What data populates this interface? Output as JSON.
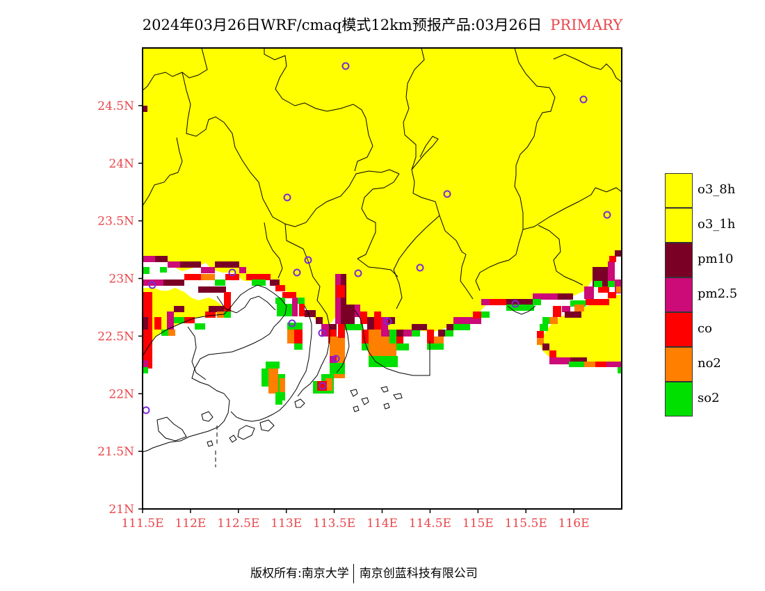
{
  "title": {
    "text": "2024年03月26日WRF/cmaq模式12km预报产品:03月26日",
    "tag": "PRIMARY"
  },
  "map": {
    "lon_range": [
      111.5,
      116.5
    ],
    "lat_range": [
      21,
      25
    ],
    "lat_ticks": [
      "24.5N",
      "24N",
      "23.5N",
      "23N",
      "22.5N",
      "22N",
      "21.5N",
      "21N"
    ],
    "lon_ticks": [
      "111.5E",
      "112E",
      "112.5E",
      "113E",
      "113.5E",
      "114E",
      "114.5E",
      "115E",
      "115.5E",
      "116E"
    ],
    "station_color": "#7a2bd6"
  },
  "legend": [
    {
      "label": "o3_8h",
      "color": "#ffff00"
    },
    {
      "label": "o3_1h",
      "color": "#ffff00"
    },
    {
      "label": "pm10",
      "color": "#7a0026"
    },
    {
      "label": "pm2.5",
      "color": "#cc0a78"
    },
    {
      "label": "co",
      "color": "#ff0000"
    },
    {
      "label": "no2",
      "color": "#ff7f00"
    },
    {
      "label": "so2",
      "color": "#00e000"
    }
  ],
  "copyright": {
    "left": "版权所有:南京大学",
    "right": "南京创蓝科技有限公司"
  }
}
